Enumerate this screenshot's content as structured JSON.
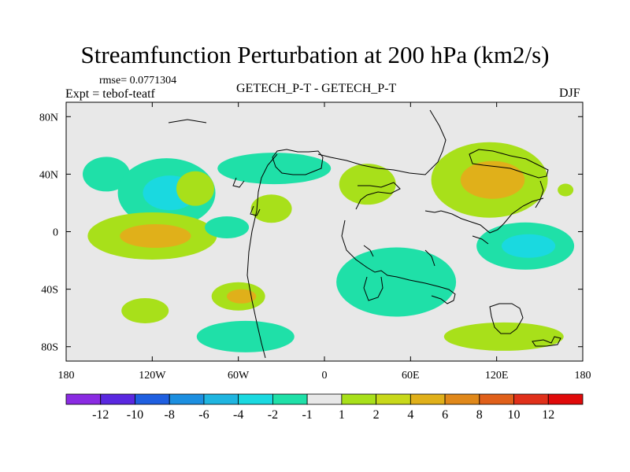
{
  "chart_data": {
    "type": "heatmap",
    "title": "Streamfunction Perturbation at 200 hPa (km2/s)",
    "rmse_label": "rmse= 0.0771304",
    "left_label": "Expt = tebof-teatf",
    "center_label": "GETECH_P-T - GETECH_P-T",
    "right_label": "DJF",
    "x_axis": {
      "range": [
        -180,
        180
      ],
      "tick_values": [
        -180,
        -120,
        -60,
        0,
        60,
        120,
        180
      ],
      "tick_labels": [
        "180",
        "120W",
        "60W",
        "0",
        "60E",
        "120E",
        "180"
      ]
    },
    "y_axis": {
      "range": [
        -90,
        90
      ],
      "tick_values": [
        80,
        40,
        0,
        -40,
        -80
      ],
      "tick_labels": [
        "80N",
        "40N",
        "0",
        "40S",
        "80S"
      ]
    },
    "colorbar": {
      "colors": [
        "#8a2be2",
        "#5a28e0",
        "#1f5fe0",
        "#1c8fe0",
        "#1fb5e0",
        "#1ad9e0",
        "#1fe0a8",
        "#e8e8e8",
        "#a8e01a",
        "#c8d81a",
        "#e0b01a",
        "#e0881a",
        "#e0601a",
        "#e0301a",
        "#e00a0a"
      ],
      "labels": [
        "-12",
        "-10",
        "-8",
        "-6",
        "-4",
        "-2",
        "-1",
        "1",
        "2",
        "4",
        "6",
        "8",
        "10",
        "12"
      ]
    },
    "anomalies": [
      {
        "name": "north-pacific-pair-west-low",
        "lon": -152,
        "lat": 40,
        "level": -1,
        "inner": null
      },
      {
        "name": "north-pacific-low",
        "lon": -110,
        "lat": 27,
        "level": -1,
        "inner": -2
      },
      {
        "name": "north-pacific-high-east",
        "lon": -90,
        "lat": 30,
        "level": 1,
        "inner": null
      },
      {
        "name": "tropical-east-pacific-high",
        "lon": -120,
        "lat": -3,
        "level": 1,
        "inner": 2
      },
      {
        "name": "tropical-pacific-low",
        "lon": -68,
        "lat": 3,
        "level": -1,
        "inner": null
      },
      {
        "name": "north-atlantic-low",
        "lon": -35,
        "lat": 44,
        "level": -1,
        "inner": null
      },
      {
        "name": "atlantic-high",
        "lon": -37,
        "lat": 16,
        "level": 1,
        "inner": null
      },
      {
        "name": "mediterranean-high",
        "lon": 30,
        "lat": 33,
        "level": 1,
        "inner": null
      },
      {
        "name": "asia-high",
        "lon": 115,
        "lat": 36,
        "level": 1,
        "inner": 2
      },
      {
        "name": "pacific-east-high",
        "lon": 168,
        "lat": 29,
        "level": 1,
        "inner": null
      },
      {
        "name": "indian-ocean-low",
        "lon": 50,
        "lat": -35,
        "level": -1,
        "inner": null
      },
      {
        "name": "south-indian-ocean-low",
        "lon": 140,
        "lat": -10,
        "level": -1,
        "inner": -2
      },
      {
        "name": "south-atlantic-high",
        "lon": -60,
        "lat": -45,
        "level": 1,
        "inner": 2
      },
      {
        "name": "south-pacific-high",
        "lon": -125,
        "lat": -55,
        "level": 1,
        "inner": null
      },
      {
        "name": "south-atlantic-low",
        "lon": -55,
        "lat": -73,
        "level": -1,
        "inner": null
      },
      {
        "name": "southern-ocean-high",
        "lon": 125,
        "lat": -73,
        "level": 1,
        "inner": null
      }
    ]
  }
}
